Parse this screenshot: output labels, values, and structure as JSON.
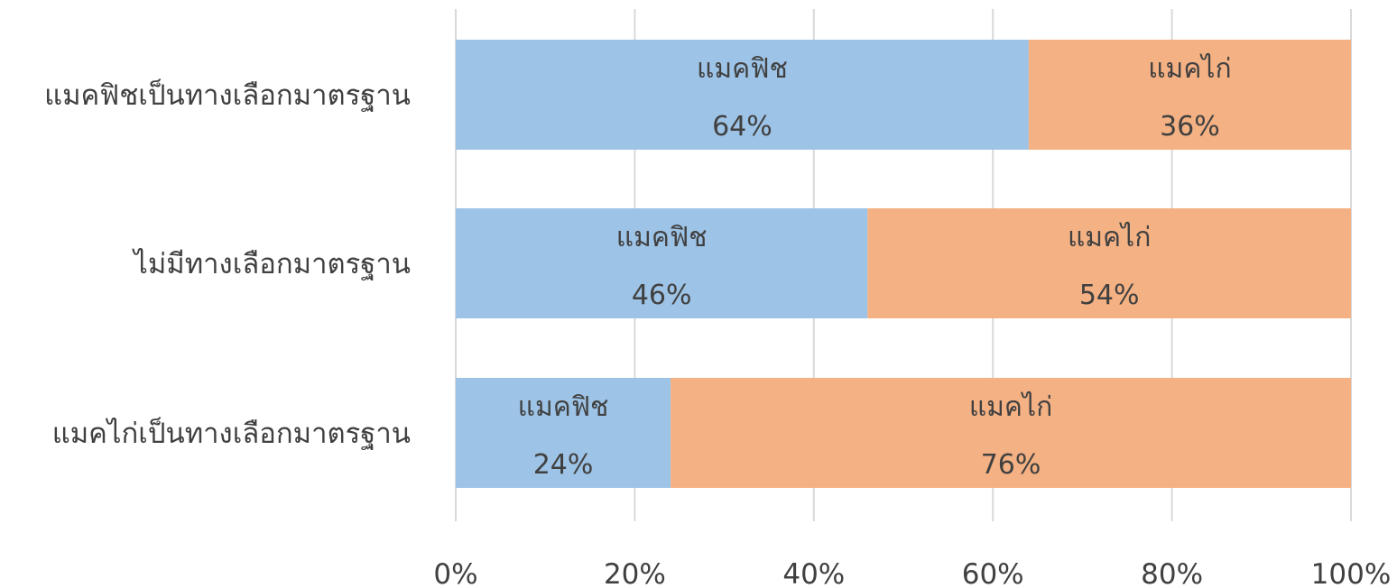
{
  "chart_data": {
    "type": "bar",
    "orientation": "horizontal",
    "stacked": "percent",
    "categories": [
      "แมคฟิชเป็นทางเลือกมาตรฐาน",
      "ไม่มีทางเลือกมาตรฐาน",
      "แมคไก่เป็นทางเลือกมาตรฐาน"
    ],
    "series": [
      {
        "name": "แมคฟิช",
        "values": [
          64,
          46,
          24
        ],
        "labels": [
          "64%",
          "46%",
          "24%"
        ],
        "color": "#9dc3e6"
      },
      {
        "name": "แมคไก่",
        "values": [
          36,
          54,
          76
        ],
        "labels": [
          "36%",
          "54%",
          "76%"
        ],
        "color": "#f4b183"
      }
    ],
    "x_ticks": [
      "0%",
      "20%",
      "40%",
      "60%",
      "80%",
      "100%"
    ],
    "xlim": [
      0,
      100
    ],
    "grid": true,
    "legend": "none",
    "title": "",
    "xlabel": "",
    "ylabel": ""
  }
}
